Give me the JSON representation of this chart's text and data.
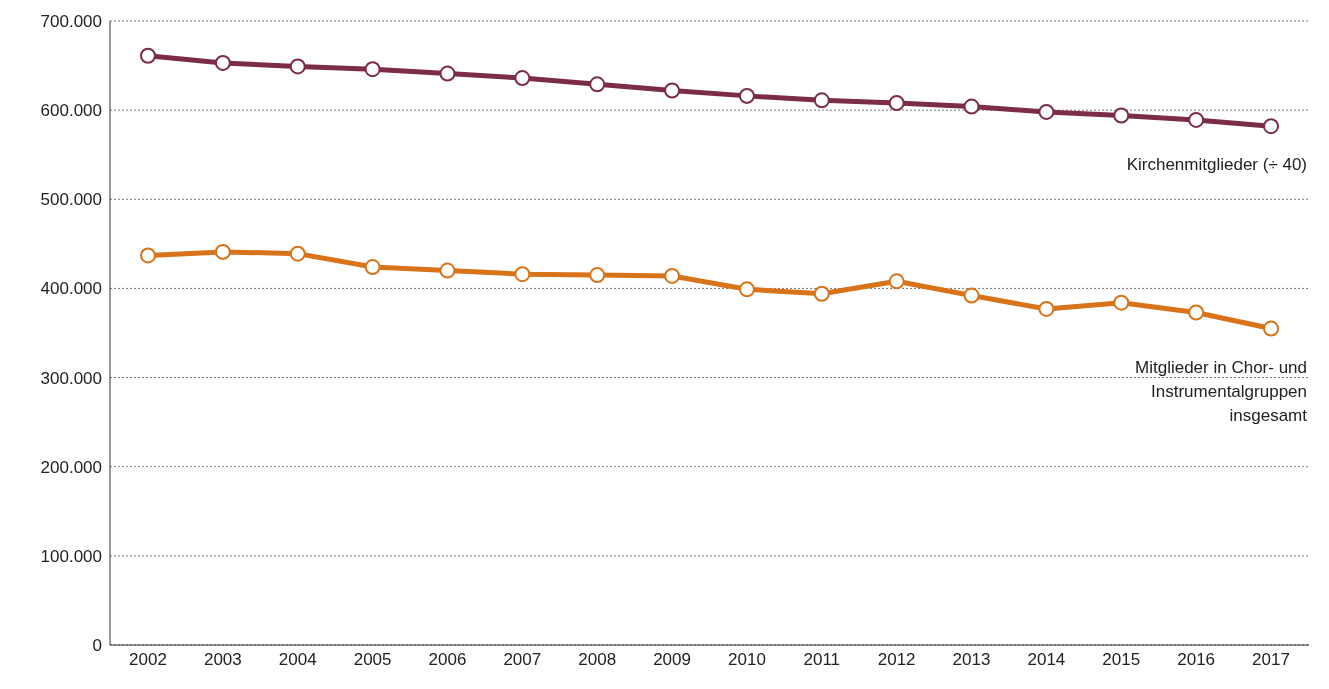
{
  "chart_data": {
    "type": "line",
    "categories": [
      "2002",
      "2003",
      "2004",
      "2005",
      "2006",
      "2007",
      "2008",
      "2009",
      "2010",
      "2011",
      "2012",
      "2013",
      "2014",
      "2015",
      "2016",
      "2017"
    ],
    "series": [
      {
        "name": "Kirchenmitglieder (÷ 40)",
        "color": "#7b2d45",
        "values": [
          661000,
          653000,
          649000,
          646000,
          641000,
          636000,
          629000,
          622000,
          616000,
          611000,
          608000,
          604000,
          598000,
          594000,
          589000,
          582000
        ]
      },
      {
        "name": "Mitglieder in Chor- und Instrumentalgruppen insgesamt",
        "color": "#d9731a",
        "values": [
          437000,
          441000,
          439000,
          424000,
          420000,
          416000,
          415000,
          414000,
          399000,
          394000,
          408000,
          392000,
          377000,
          384000,
          373000,
          355000
        ]
      }
    ],
    "ylim": [
      0,
      700000
    ],
    "yticks": [
      0,
      {
        "value": 100000,
        "label": "100.000"
      },
      {
        "value": 200000,
        "label": "200.000"
      },
      {
        "value": 300000,
        "label": "300.000"
      },
      {
        "value": 400000,
        "label": "400.000"
      },
      {
        "value": 500000,
        "label": "500.000"
      },
      {
        "value": 600000,
        "label": "600.000"
      },
      {
        "value": 700000,
        "label": "700.000"
      }
    ],
    "grid": "y",
    "marker": "circle",
    "line_style": "solid",
    "legend": false
  }
}
